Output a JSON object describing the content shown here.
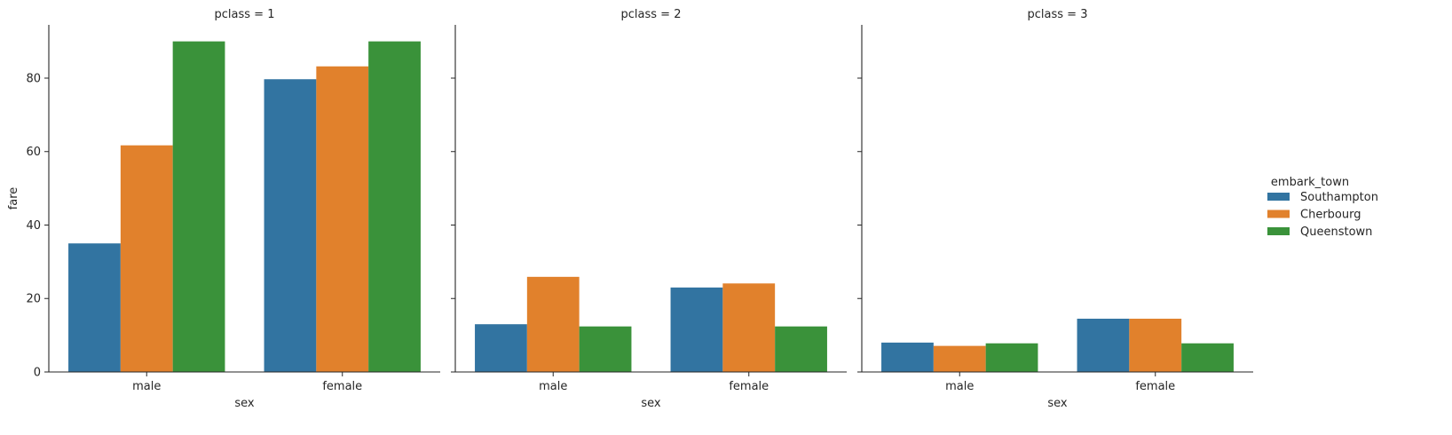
{
  "chart_data": {
    "type": "bar",
    "facet_variable": "pclass",
    "panels": [
      {
        "title": "pclass = 1",
        "categories": [
          "male",
          "female"
        ],
        "series": [
          {
            "name": "Southampton",
            "values": [
              35.0,
              79.7
            ]
          },
          {
            "name": "Cherbourg",
            "values": [
              61.7,
              83.2
            ]
          },
          {
            "name": "Queenstown",
            "values": [
              90.0,
              90.0
            ]
          }
        ]
      },
      {
        "title": "pclass = 2",
        "categories": [
          "male",
          "female"
        ],
        "series": [
          {
            "name": "Southampton",
            "values": [
              13.0,
              23.0
            ]
          },
          {
            "name": "Cherbourg",
            "values": [
              25.9,
              24.1
            ]
          },
          {
            "name": "Queenstown",
            "values": [
              12.4,
              12.4
            ]
          }
        ]
      },
      {
        "title": "pclass = 3",
        "categories": [
          "male",
          "female"
        ],
        "series": [
          {
            "name": "Southampton",
            "values": [
              8.0,
              14.5
            ]
          },
          {
            "name": "Cherbourg",
            "values": [
              7.1,
              14.5
            ]
          },
          {
            "name": "Queenstown",
            "values": [
              7.8,
              7.8
            ]
          }
        ]
      }
    ],
    "xlabel": "sex",
    "ylabel": "fare",
    "ylim": [
      0,
      94.5
    ],
    "yticks": [
      0,
      20,
      40,
      60,
      80
    ],
    "legend": {
      "title": "embark_town",
      "placement": "center-right",
      "entries": [
        "Southampton",
        "Cherbourg",
        "Queenstown"
      ]
    },
    "colors": {
      "Southampton": "#3274a1",
      "Cherbourg": "#e1812c",
      "Queenstown": "#3a923a"
    },
    "grid": false
  }
}
